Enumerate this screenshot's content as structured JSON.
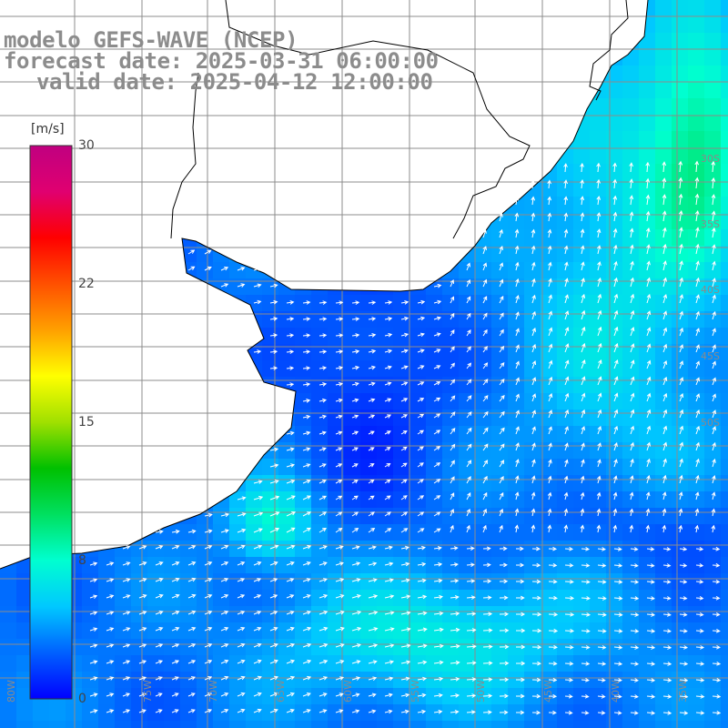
{
  "title": {
    "line1": "modelo GEFS-WAVE (NCEP)",
    "line2": "forecast date: 2025-03-31 06:00:00",
    "line3": "valid date: 2025-04-12 12:00:00"
  },
  "colorbar": {
    "unit": "[m/s]",
    "ticks": [
      "30",
      "22",
      "15",
      "8",
      "0"
    ],
    "tick_values": [
      30,
      22,
      15,
      8,
      0
    ],
    "min": 0,
    "max": 30,
    "colors": [
      "#0000ff",
      "#0060ff",
      "#00c8ff",
      "#00ffd0",
      "#00e060",
      "#00c000",
      "#a0e000",
      "#ffff00",
      "#ffa000",
      "#ff5000",
      "#ff0000",
      "#e00070",
      "#c00080"
    ]
  },
  "map": {
    "lat_labels": [
      "30S",
      "35S",
      "40S",
      "45S",
      "50S"
    ],
    "lon_labels": [
      "80W",
      "75W",
      "70W",
      "65W",
      "60W",
      "55W",
      "50W",
      "45W",
      "40W",
      "35W"
    ],
    "land_color": "#ffffff",
    "grid_color": "#8c8c8c",
    "coast_color": "#000000",
    "arrow_color": "#ffffff",
    "field": "wind speed with direction arrows"
  }
}
